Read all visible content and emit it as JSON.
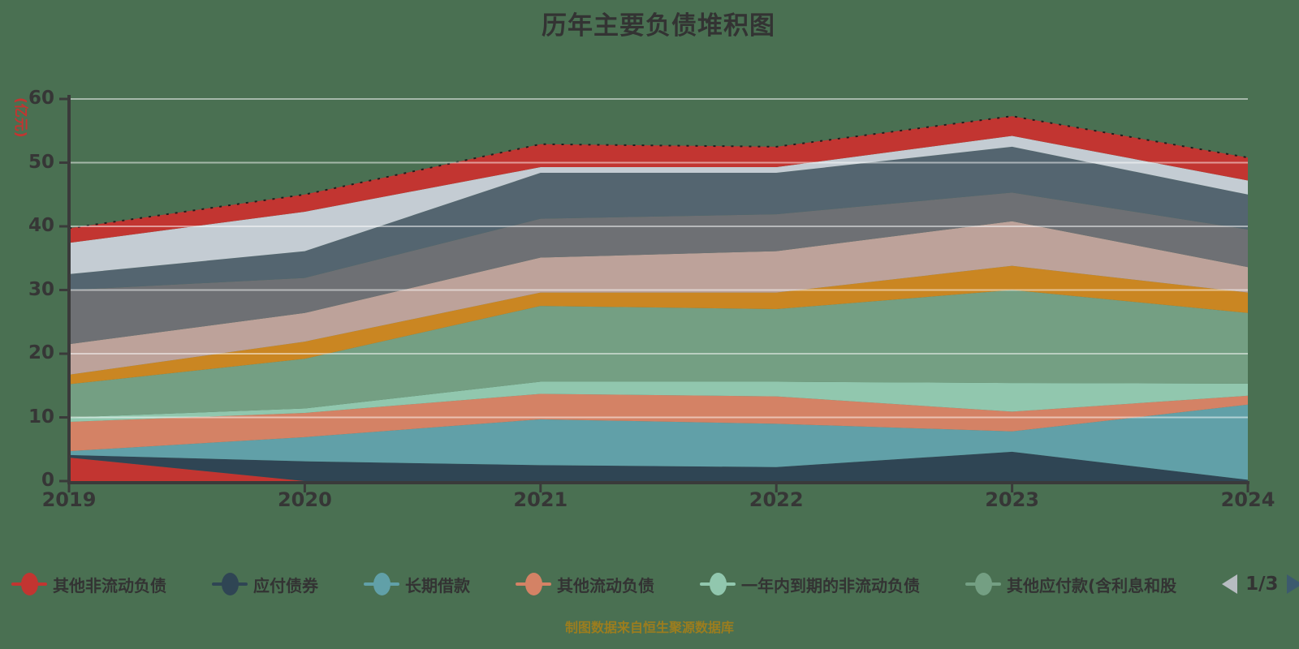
{
  "title": "历年主要负债堆积图",
  "y_axis": {
    "unit_label": "(亿元)",
    "tick_labels": [
      "0",
      "10",
      "20",
      "30",
      "40",
      "50",
      "60"
    ],
    "min": 0,
    "max": 60
  },
  "x_axis": {
    "tick_labels": [
      "2019",
      "2020",
      "2021",
      "2022",
      "2023",
      "2024"
    ]
  },
  "legend": {
    "items": [
      {
        "label": "其他非流动负债",
        "color": "#c23531"
      },
      {
        "label": "应付债券",
        "color": "#2f4554"
      },
      {
        "label": "长期借款",
        "color": "#61a0a8"
      },
      {
        "label": "其他流动负债",
        "color": "#d48265"
      },
      {
        "label": "一年内到期的非流动负债",
        "color": "#91c7ae"
      },
      {
        "label": "其他应付款(含利息和股",
        "color": "#749f83"
      }
    ],
    "pagination": {
      "current_page": "1/3",
      "prev_arrow_color": "#b7bcc1",
      "next_arrow_color": "#3c5a6e"
    }
  },
  "footer": "制图数据来自恒生聚源数据库",
  "colors": {
    "background": "#4A7052",
    "title_text": "#333333",
    "axis_line": "#3a3a3a",
    "axis_label_text": "#363636",
    "y_unit_text": "#c23531",
    "gridline": "rgba(255,255,255,0.5)",
    "top_edge_dash": "#1f1f1f",
    "footer_text": "#9C7D1E"
  },
  "chart_data": {
    "type": "area",
    "stacked": true,
    "smooth": false,
    "grid": true,
    "legend_position": "bottom",
    "title": "历年主要负债堆积图",
    "ylabel": "(亿元)",
    "ylim": [
      0,
      60
    ],
    "categories": [
      "2019",
      "2020",
      "2021",
      "2022",
      "2023",
      "2024"
    ],
    "series": [
      {
        "name": "其他非流动负债",
        "color": "#c23531",
        "values": [
          3.7,
          0,
          0,
          0,
          0,
          0
        ]
      },
      {
        "name": "应付债券",
        "color": "#2f4554",
        "values": [
          0.4,
          3.1,
          2.5,
          2.2,
          4.6,
          0.2
        ]
      },
      {
        "name": "长期借款",
        "color": "#61a0a8",
        "values": [
          0.6,
          3.8,
          7.2,
          6.8,
          3.2,
          11.8
        ]
      },
      {
        "name": "其他流动负债",
        "color": "#d48265",
        "values": [
          4.6,
          3.8,
          4.0,
          4.3,
          3.1,
          1.4
        ]
      },
      {
        "name": "一年内到期的非流动负债",
        "color": "#91c7ae",
        "values": [
          0.7,
          0.7,
          1.9,
          2.3,
          4.5,
          1.9
        ]
      },
      {
        "name": "其他应付款(含利息和股",
        "color": "#749f83",
        "values": [
          5.2,
          7.8,
          11.9,
          11.4,
          14.6,
          11.1
        ]
      },
      {
        "name": "",
        "color": "#ca8622",
        "values": [
          1.5,
          2.7,
          2.1,
          2.6,
          3.8,
          3.2
        ]
      },
      {
        "name": "",
        "color": "#bda29a",
        "values": [
          4.8,
          4.5,
          5.5,
          6.5,
          7.0,
          4.0
        ]
      },
      {
        "name": "",
        "color": "#6e7074",
        "values": [
          8.5,
          5.5,
          6.1,
          5.8,
          4.5,
          5.9
        ]
      },
      {
        "name": "",
        "color": "#546570",
        "values": [
          2.5,
          4.2,
          7.2,
          6.5,
          7.2,
          5.5
        ]
      },
      {
        "name": "",
        "color": "#c4ccd3",
        "values": [
          4.9,
          6.2,
          0.9,
          0.9,
          1.7,
          2.2
        ]
      },
      {
        "name": "",
        "color": "#c23531",
        "values": [
          2.3,
          2.7,
          3.6,
          3.2,
          3.1,
          3.6
        ]
      }
    ],
    "stack_totals": [
      39.7,
      45.0,
      52.9,
      52.5,
      57.3,
      50.8
    ]
  }
}
